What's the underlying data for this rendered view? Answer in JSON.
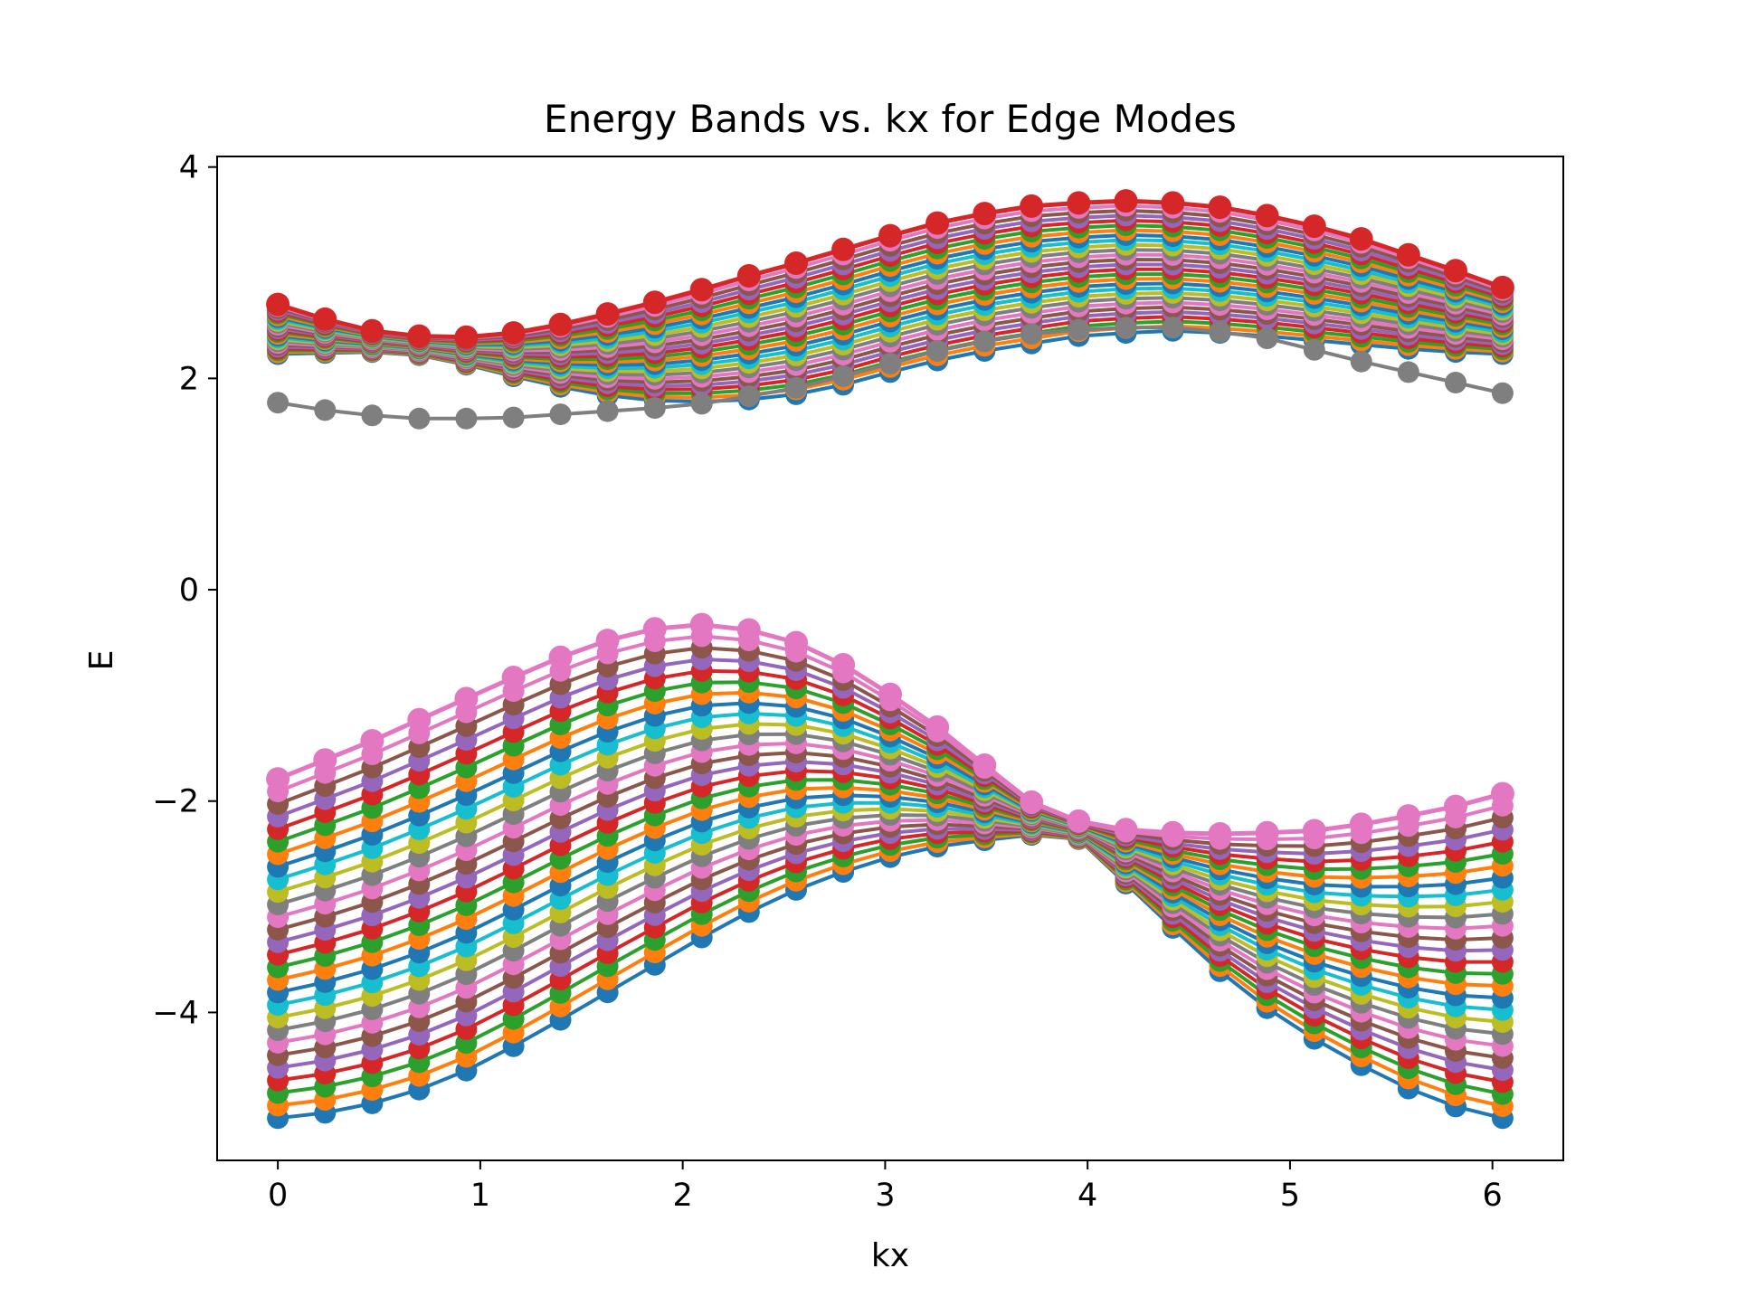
{
  "chart_data": {
    "type": "line",
    "title": "Energy Bands vs. kx for Edge Modes",
    "xlabel": "kx",
    "ylabel": "E",
    "xlim": [
      -0.3,
      6.35
    ],
    "ylim": [
      -5.4,
      4.1
    ],
    "x_ticks": [
      0,
      1,
      2,
      3,
      4,
      5,
      6
    ],
    "y_ticks": [
      4,
      2,
      0,
      -2,
      -4
    ],
    "y_tick_labels": [
      "4",
      "2",
      "0",
      "−2",
      "−4"
    ],
    "grid": false,
    "legend": "none",
    "marker": "circle",
    "x": [
      0,
      0.233,
      0.466,
      0.698,
      0.931,
      1.164,
      1.396,
      1.629,
      1.862,
      2.094,
      2.327,
      2.56,
      2.793,
      3.025,
      3.258,
      3.491,
      3.723,
      3.956,
      4.189,
      4.421,
      4.654,
      4.887,
      5.12,
      5.352,
      5.585,
      5.818,
      6.05
    ],
    "band_count_per_group": 28,
    "upper_band_top": [
      2.7,
      2.56,
      2.45,
      2.4,
      2.39,
      2.43,
      2.51,
      2.61,
      2.72,
      2.84,
      2.97,
      3.09,
      3.22,
      3.35,
      3.47,
      3.56,
      3.63,
      3.66,
      3.68,
      3.66,
      3.62,
      3.54,
      3.44,
      3.32,
      3.17,
      3.02,
      2.86
    ],
    "upper_band_bottom": [
      2.23,
      2.24,
      2.25,
      2.22,
      2.13,
      2.02,
      1.92,
      1.84,
      1.79,
      1.78,
      1.8,
      1.85,
      1.94,
      2.06,
      2.17,
      2.26,
      2.33,
      2.4,
      2.43,
      2.45,
      2.43,
      2.4,
      2.36,
      2.32,
      2.28,
      2.25,
      2.23
    ],
    "edge_mode": [
      1.77,
      1.7,
      1.65,
      1.62,
      1.62,
      1.63,
      1.66,
      1.69,
      1.72,
      1.76,
      1.83,
      1.91,
      2.02,
      2.14,
      2.26,
      2.35,
      2.42,
      2.46,
      2.48,
      2.48,
      2.44,
      2.38,
      2.27,
      2.16,
      2.06,
      1.96,
      1.86
    ],
    "lower_band_top": [
      -1.79,
      -1.61,
      -1.43,
      -1.23,
      -1.03,
      -0.83,
      -0.64,
      -0.48,
      -0.37,
      -0.33,
      -0.38,
      -0.5,
      -0.71,
      -0.99,
      -1.3,
      -1.66,
      -2.01,
      -2.19,
      -2.27,
      -2.3,
      -2.31,
      -2.3,
      -2.28,
      -2.22,
      -2.14,
      -2.05,
      -1.93
    ],
    "lower_band_bottom": [
      -5.0,
      -4.95,
      -4.86,
      -4.73,
      -4.55,
      -4.32,
      -4.07,
      -3.81,
      -3.55,
      -3.29,
      -3.05,
      -2.84,
      -2.67,
      -2.53,
      -2.43,
      -2.37,
      -2.32,
      -2.36,
      -2.78,
      -3.2,
      -3.61,
      -3.96,
      -4.25,
      -4.5,
      -4.72,
      -4.89,
      -5.0
    ],
    "series_colors": [
      "#1f77b4",
      "#ff7f0e",
      "#2ca02c",
      "#d62728",
      "#9467bd",
      "#8c564b",
      "#e377c2",
      "#7f7f7f",
      "#bcbd22",
      "#17becf"
    ]
  }
}
